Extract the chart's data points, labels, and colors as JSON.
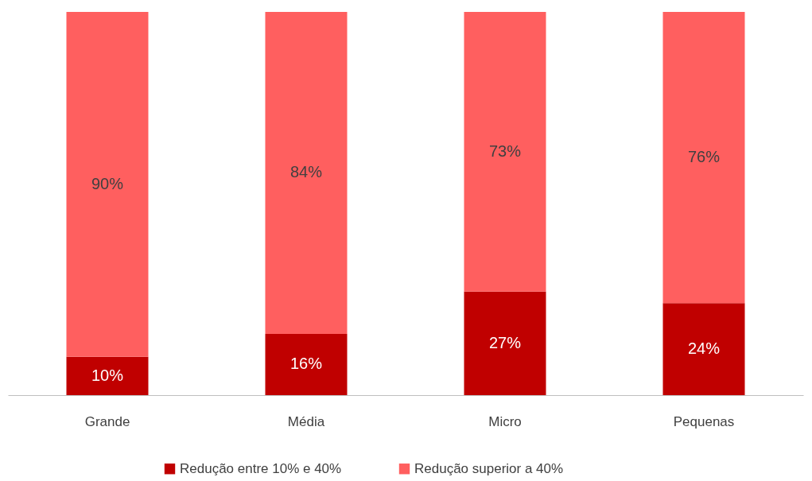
{
  "chart_data": {
    "type": "bar",
    "stacked": true,
    "legend": "bottom",
    "tick_labels": "x",
    "categories": [
      "Grande",
      "Média",
      "Micro",
      "Pequenas"
    ],
    "series": [
      {
        "name": "Redução entre 10% e 40%",
        "color": "#c00000",
        "values": [
          10,
          16,
          27,
          24
        ],
        "value_labels": [
          "10%",
          "16%",
          "27%",
          "24%"
        ]
      },
      {
        "name": "Redução superior a 40%",
        "color": "#ff5f5f",
        "values": [
          90,
          84,
          73,
          76
        ],
        "value_labels": [
          "90%",
          "84%",
          "73%",
          "76%"
        ]
      }
    ]
  }
}
